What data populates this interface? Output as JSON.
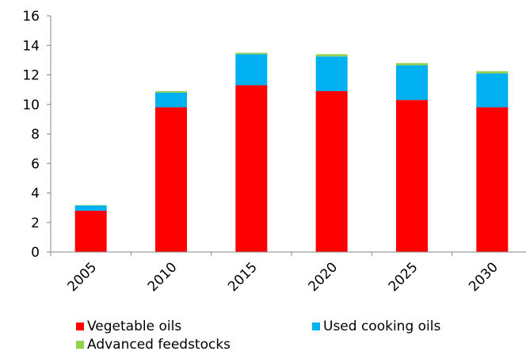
{
  "chart_data": {
    "type": "bar",
    "stacked": true,
    "categories": [
      "2005",
      "2010",
      "2015",
      "2020",
      "2025",
      "2030"
    ],
    "series": [
      {
        "name": "Vegetable oils",
        "color": "#ff0000",
        "values": [
          2.8,
          9.8,
          11.3,
          10.9,
          10.3,
          9.8
        ]
      },
      {
        "name": "Used cooking oils",
        "color": "#00b0f0",
        "values": [
          0.35,
          1.0,
          2.1,
          2.35,
          2.35,
          2.3
        ]
      },
      {
        "name": "Advanced feedstocks",
        "color": "#92d050",
        "values": [
          0.03,
          0.1,
          0.1,
          0.15,
          0.15,
          0.15
        ]
      }
    ],
    "yticks": [
      "0",
      "2",
      "4",
      "6",
      "8",
      "10",
      "12",
      "14",
      "16"
    ],
    "ylim": [
      0,
      16
    ],
    "grid": false,
    "legend_position": "bottom",
    "title": "",
    "xlabel": "",
    "ylabel": ""
  }
}
